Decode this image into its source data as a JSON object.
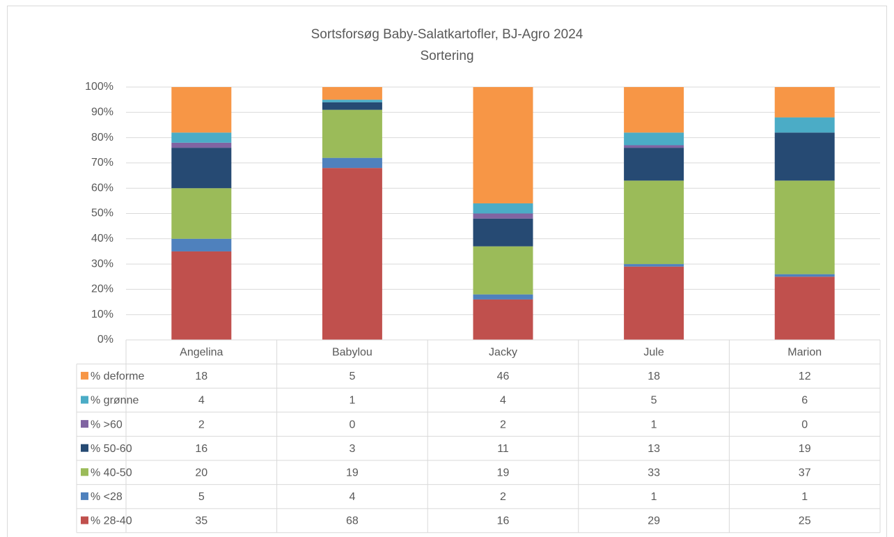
{
  "chart_data": {
    "type": "stacked_bar",
    "title": "Sortsforsøg Baby-Salatkartofler, BJ-Agro 2024",
    "subtitle": "Sortering",
    "categories": [
      "Angelina",
      "Babylou",
      "Jacky",
      "Jule",
      "Marion"
    ],
    "series": [
      {
        "name": "% 28-40",
        "color": "#c0504d",
        "values": [
          35,
          68,
          16,
          29,
          25
        ]
      },
      {
        "name": "% <28",
        "color": "#4f81bd",
        "values": [
          5,
          4,
          2,
          1,
          1
        ]
      },
      {
        "name": "% 40-50",
        "color": "#9bbb59",
        "values": [
          20,
          19,
          19,
          33,
          37
        ]
      },
      {
        "name": "% 50-60",
        "color": "#264a73",
        "values": [
          16,
          3,
          11,
          13,
          19
        ]
      },
      {
        "name": "% >60",
        "color": "#8064a2",
        "values": [
          2,
          0,
          2,
          1,
          0
        ]
      },
      {
        "name": "% grønne",
        "color": "#4bacc6",
        "values": [
          4,
          1,
          4,
          5,
          6
        ]
      },
      {
        "name": "% deforme",
        "color": "#f79646",
        "values": [
          18,
          5,
          46,
          18,
          12
        ]
      }
    ],
    "ylim": [
      0,
      100
    ],
    "yticks": [
      {
        "value": 0,
        "label": "0%"
      },
      {
        "value": 10,
        "label": "10%"
      },
      {
        "value": 20,
        "label": "20%"
      },
      {
        "value": 30,
        "label": "30%"
      },
      {
        "value": 40,
        "label": "40%"
      },
      {
        "value": 50,
        "label": "50%"
      },
      {
        "value": 60,
        "label": "60%"
      },
      {
        "value": 70,
        "label": "70%"
      },
      {
        "value": 80,
        "label": "80%"
      },
      {
        "value": 90,
        "label": "90%"
      },
      {
        "value": 100,
        "label": "100%"
      }
    ],
    "grid": true
  }
}
